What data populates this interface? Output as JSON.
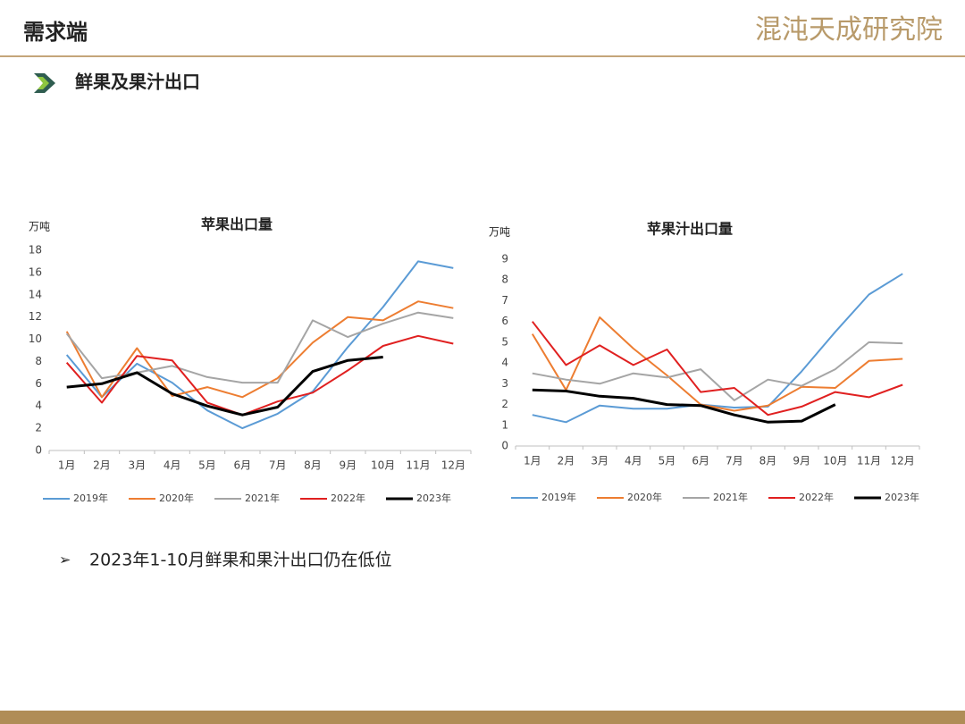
{
  "header": {
    "title": "需求端",
    "logo": "混沌天成研究院"
  },
  "section": "鲜果及果汁出口",
  "note": "2023年1-10月鲜果和果汁出口仍在低位",
  "chart_data": [
    {
      "type": "line",
      "title": "苹果出口量",
      "y_unit": "万吨",
      "categories": [
        "1月",
        "2月",
        "3月",
        "4月",
        "5月",
        "6月",
        "7月",
        "8月",
        "9月",
        "10月",
        "11月",
        "12月"
      ],
      "ylim": [
        0,
        18
      ],
      "yticks": [
        0,
        2,
        4,
        6,
        8,
        10,
        12,
        14,
        16,
        18
      ],
      "grid": false,
      "legend": "bottom",
      "series": [
        {
          "name": "2019年",
          "color": "#5b9bd5",
          "values": [
            8.6,
            4.8,
            7.8,
            6.1,
            3.6,
            2.0,
            3.3,
            5.3,
            9.3,
            12.9,
            17.0,
            16.4
          ]
        },
        {
          "name": "2020年",
          "color": "#ed7d31",
          "values": [
            10.7,
            4.8,
            9.2,
            4.9,
            5.7,
            4.8,
            6.5,
            9.7,
            12.0,
            11.7,
            13.4,
            12.8
          ]
        },
        {
          "name": "2021年",
          "color": "#a5a5a5",
          "values": [
            10.5,
            6.5,
            7.0,
            7.6,
            6.6,
            6.1,
            6.1,
            11.7,
            10.2,
            11.4,
            12.4,
            11.9
          ]
        },
        {
          "name": "2022年",
          "color": "#e02020",
          "values": [
            7.9,
            4.3,
            8.5,
            8.1,
            4.3,
            3.2,
            4.4,
            5.2,
            7.2,
            9.4,
            10.3,
            9.6
          ]
        },
        {
          "name": "2023年",
          "color": "#000000",
          "values": [
            5.7,
            6.0,
            7.0,
            5.1,
            4.0,
            3.2,
            3.9,
            7.1,
            8.1,
            8.4,
            null,
            null
          ]
        }
      ]
    },
    {
      "type": "line",
      "title": "苹果汁出口量",
      "y_unit": "万吨",
      "categories": [
        "1月",
        "2月",
        "3月",
        "4月",
        "5月",
        "6月",
        "7月",
        "8月",
        "9月",
        "10月",
        "11月",
        "12月"
      ],
      "ylim": [
        0,
        9
      ],
      "yticks": [
        0,
        1,
        2,
        3,
        4,
        5,
        6,
        7,
        8,
        9
      ],
      "grid": false,
      "legend": "bottom",
      "series": [
        {
          "name": "2019年",
          "color": "#5b9bd5",
          "values": [
            1.5,
            1.15,
            1.95,
            1.8,
            1.8,
            2.0,
            1.85,
            1.9,
            3.6,
            5.5,
            7.3,
            8.3
          ]
        },
        {
          "name": "2020年",
          "color": "#ed7d31",
          "values": [
            5.4,
            2.7,
            6.2,
            4.7,
            3.4,
            2.0,
            1.7,
            1.95,
            2.85,
            2.8,
            4.1,
            4.2
          ]
        },
        {
          "name": "2021年",
          "color": "#a5a5a5",
          "values": [
            3.5,
            3.2,
            3.0,
            3.5,
            3.3,
            3.7,
            2.2,
            3.2,
            2.9,
            3.7,
            5.0,
            4.95
          ]
        },
        {
          "name": "2022年",
          "color": "#e02020",
          "values": [
            6.0,
            3.9,
            4.85,
            3.9,
            4.65,
            2.6,
            2.8,
            1.5,
            1.9,
            2.6,
            2.35,
            2.95
          ]
        },
        {
          "name": "2023年",
          "color": "#000000",
          "values": [
            2.7,
            2.65,
            2.4,
            2.3,
            2.0,
            1.95,
            1.5,
            1.15,
            1.2,
            2.0,
            null,
            null
          ]
        }
      ]
    }
  ]
}
